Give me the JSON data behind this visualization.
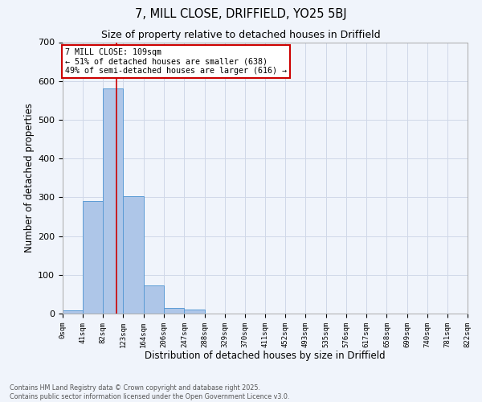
{
  "title_line1": "7, MILL CLOSE, DRIFFIELD, YO25 5BJ",
  "title_line2": "Size of property relative to detached houses in Driffield",
  "bar_values": [
    8,
    290,
    580,
    303,
    72,
    15,
    10,
    0,
    0,
    0,
    0,
    0,
    0,
    0,
    0,
    0,
    0,
    0,
    0,
    0
  ],
  "bin_edges": [
    0,
    41,
    82,
    123,
    164,
    206,
    247,
    288,
    329,
    370,
    411,
    452,
    493,
    535,
    576,
    617,
    658,
    699,
    740,
    781,
    822
  ],
  "bar_color": "#aec6e8",
  "bar_edgecolor": "#5b9bd5",
  "grid_color": "#d0d8e8",
  "background_color": "#f0f4fb",
  "property_line_x": 109,
  "property_line_color": "#cc0000",
  "annotation_text": "7 MILL CLOSE: 109sqm\n← 51% of detached houses are smaller (638)\n49% of semi-detached houses are larger (616) →",
  "annotation_box_color": "#cc0000",
  "xlabel": "Distribution of detached houses by size in Driffield",
  "ylabel": "Number of detached properties",
  "ylim": [
    0,
    700
  ],
  "yticks": [
    0,
    100,
    200,
    300,
    400,
    500,
    600,
    700
  ],
  "footer_line1": "Contains HM Land Registry data © Crown copyright and database right 2025.",
  "footer_line2": "Contains public sector information licensed under the Open Government Licence v3.0.",
  "tick_labels": [
    "0sqm",
    "41sqm",
    "82sqm",
    "123sqm",
    "164sqm",
    "206sqm",
    "247sqm",
    "288sqm",
    "329sqm",
    "370sqm",
    "411sqm",
    "452sqm",
    "493sqm",
    "535sqm",
    "576sqm",
    "617sqm",
    "658sqm",
    "699sqm",
    "740sqm",
    "781sqm",
    "822sqm"
  ]
}
